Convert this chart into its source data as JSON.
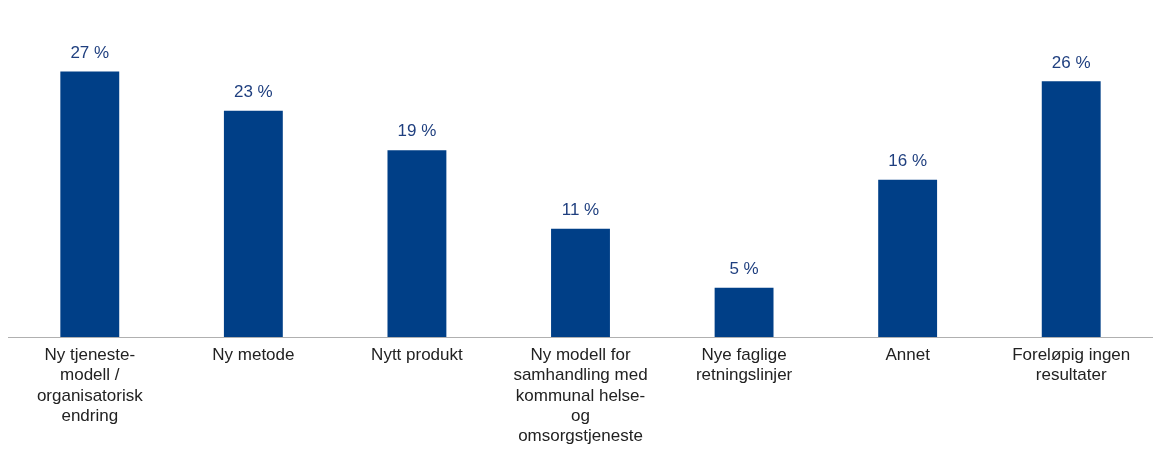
{
  "chart_data": {
    "type": "bar",
    "categories": [
      "Ny tjeneste-modell / organisatorisk endring",
      "Ny metode",
      "Nytt produkt",
      "Ny modell for samhandling med kommunal helse- og omsorgstjeneste",
      "Nye faglige retningslinjer",
      "Annet",
      "Foreløpig ingen resultater"
    ],
    "values": [
      27,
      23,
      19,
      11,
      5,
      16,
      26
    ],
    "value_labels": [
      "27 %",
      "23 %",
      "19 %",
      "11 %",
      "5 %",
      "16 %",
      "26 %"
    ],
    "color": "#003f87",
    "grid": false,
    "legend": false
  }
}
